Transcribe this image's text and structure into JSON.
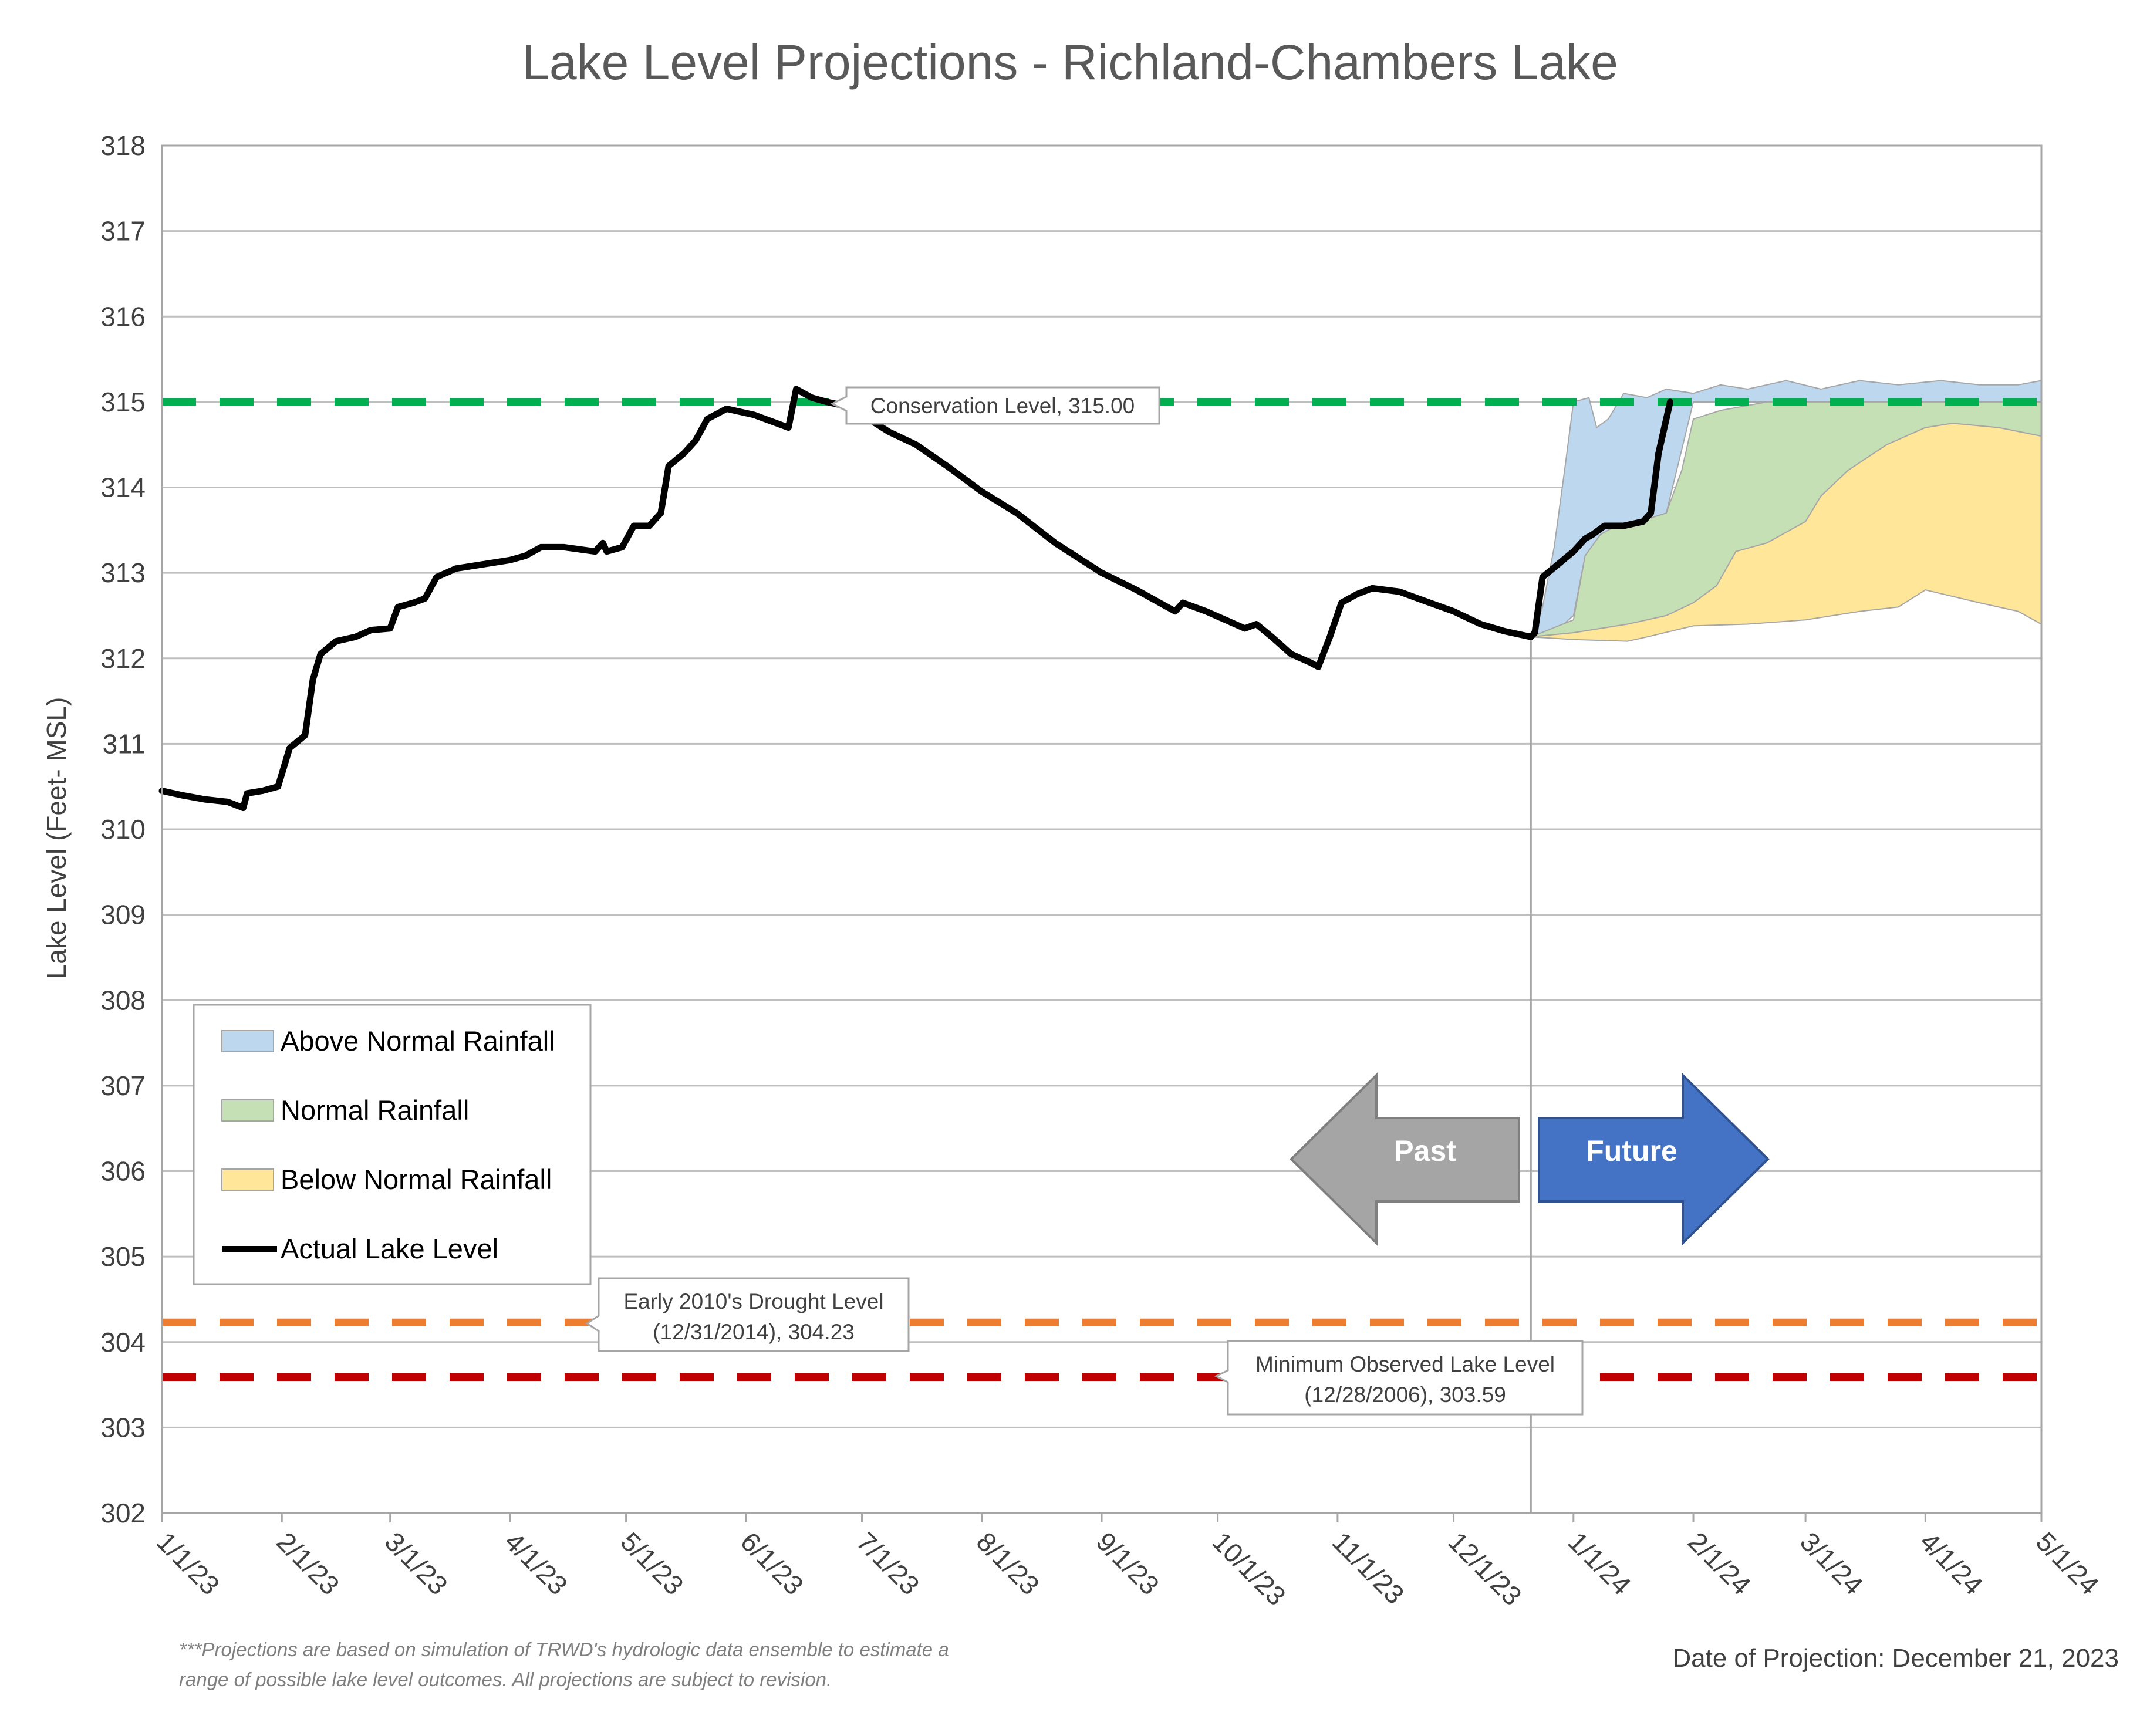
{
  "chart_data": {
    "type": "area",
    "title": "Lake Level Projections - Richland-Chambers Lake",
    "xlabel": "",
    "ylabel": "Lake Level (Feet- MSL)",
    "ylim": [
      302,
      318
    ],
    "yticks": [
      302,
      303,
      304,
      305,
      306,
      307,
      308,
      309,
      310,
      311,
      312,
      313,
      314,
      315,
      316,
      317,
      318
    ],
    "x_start": "2023-01-01",
    "x_end": "2024-05-01",
    "xticks": [
      {
        "label": "1/1/23",
        "date": "2023-01-01"
      },
      {
        "label": "2/1/23",
        "date": "2023-02-01"
      },
      {
        "label": "3/1/23",
        "date": "2023-03-01"
      },
      {
        "label": "4/1/23",
        "date": "2023-04-01"
      },
      {
        "label": "5/1/23",
        "date": "2023-05-01"
      },
      {
        "label": "6/1/23",
        "date": "2023-06-01"
      },
      {
        "label": "7/1/23",
        "date": "2023-07-01"
      },
      {
        "label": "8/1/23",
        "date": "2023-08-01"
      },
      {
        "label": "9/1/23",
        "date": "2023-09-01"
      },
      {
        "label": "10/1/23",
        "date": "2023-10-01"
      },
      {
        "label": "11/1/23",
        "date": "2023-11-01"
      },
      {
        "label": "12/1/23",
        "date": "2023-12-01"
      },
      {
        "label": "1/1/24",
        "date": "2024-01-01"
      },
      {
        "label": "2/1/24",
        "date": "2024-02-01"
      },
      {
        "label": "3/1/24",
        "date": "2024-03-01"
      },
      {
        "label": "4/1/24",
        "date": "2024-04-01"
      },
      {
        "label": "5/1/24",
        "date": "2024-05-01"
      }
    ],
    "grid": true,
    "legend_position": "bottom-left",
    "projection_date": "2023-12-21",
    "reference_lines": [
      {
        "label": "Conservation Level, 315.00",
        "value": 315.0,
        "color": "#00b050"
      },
      {
        "label": "Early 2010's Drought Level (12/31/2014), 304.23",
        "value": 304.23,
        "color": "#ed7d31"
      },
      {
        "label": "Minimum Observed Lake Level (12/28/2006), 303.59",
        "value": 303.59,
        "color": "#c00000"
      }
    ],
    "series": [
      {
        "name": "Above Normal Rainfall",
        "kind": "band",
        "color": "#bdd7ee",
        "upper": [
          [
            "2023-12-21",
            312.25
          ],
          [
            "2023-12-24",
            312.6
          ],
          [
            "2023-12-27",
            313.3
          ],
          [
            "2023-12-30",
            314.3
          ],
          [
            "2024-01-01",
            315.0
          ],
          [
            "2024-01-05",
            315.05
          ],
          [
            "2024-01-07",
            314.7
          ],
          [
            "2024-01-10",
            314.8
          ],
          [
            "2024-01-14",
            315.1
          ],
          [
            "2024-01-20",
            315.05
          ],
          [
            "2024-01-25",
            315.15
          ],
          [
            "2024-02-01",
            315.1
          ],
          [
            "2024-02-08",
            315.2
          ],
          [
            "2024-02-15",
            315.15
          ],
          [
            "2024-02-25",
            315.25
          ],
          [
            "2024-03-05",
            315.15
          ],
          [
            "2024-03-15",
            315.25
          ],
          [
            "2024-03-25",
            315.2
          ],
          [
            "2024-04-05",
            315.25
          ],
          [
            "2024-04-15",
            315.2
          ],
          [
            "2024-04-25",
            315.2
          ],
          [
            "2024-05-01",
            315.25
          ]
        ],
        "lower": [
          [
            "2023-12-21",
            312.25
          ],
          [
            "2023-12-27",
            312.3
          ],
          [
            "2024-01-01",
            312.5
          ],
          [
            "2024-01-04",
            313.2
          ],
          [
            "2024-01-08",
            313.45
          ],
          [
            "2024-01-12",
            313.55
          ],
          [
            "2024-01-18",
            313.6
          ],
          [
            "2024-01-25",
            313.7
          ],
          [
            "2024-02-01",
            315.0
          ],
          [
            "2024-05-01",
            315.0
          ]
        ]
      },
      {
        "name": "Normal Rainfall",
        "kind": "band",
        "color": "#c5e0b4",
        "upper": [
          [
            "2023-12-21",
            312.25
          ],
          [
            "2024-01-01",
            312.45
          ],
          [
            "2024-01-04",
            313.2
          ],
          [
            "2024-01-08",
            313.45
          ],
          [
            "2024-01-12",
            313.55
          ],
          [
            "2024-01-18",
            313.6
          ],
          [
            "2024-01-25",
            313.7
          ],
          [
            "2024-01-29",
            314.2
          ],
          [
            "2024-02-01",
            314.8
          ],
          [
            "2024-02-08",
            314.9
          ],
          [
            "2024-02-20",
            315.0
          ],
          [
            "2024-03-10",
            315.0
          ],
          [
            "2024-04-01",
            315.0
          ],
          [
            "2024-05-01",
            315.0
          ]
        ],
        "lower": [
          [
            "2023-12-21",
            312.25
          ],
          [
            "2024-01-01",
            312.3
          ],
          [
            "2024-01-15",
            312.4
          ],
          [
            "2024-01-25",
            312.5
          ],
          [
            "2024-02-01",
            312.65
          ],
          [
            "2024-02-07",
            312.85
          ],
          [
            "2024-02-12",
            313.25
          ],
          [
            "2024-02-20",
            313.35
          ],
          [
            "2024-03-01",
            313.6
          ],
          [
            "2024-03-05",
            313.9
          ],
          [
            "2024-03-12",
            314.2
          ],
          [
            "2024-03-22",
            314.5
          ],
          [
            "2024-04-01",
            314.7
          ],
          [
            "2024-04-08",
            314.75
          ],
          [
            "2024-04-20",
            314.7
          ],
          [
            "2024-05-01",
            314.6
          ]
        ]
      },
      {
        "name": "Below Normal Rainfall",
        "kind": "band",
        "color": "#ffe699",
        "upper": [
          [
            "2023-12-21",
            312.25
          ],
          [
            "2024-01-01",
            312.3
          ],
          [
            "2024-01-15",
            312.4
          ],
          [
            "2024-01-25",
            312.5
          ],
          [
            "2024-02-01",
            312.65
          ],
          [
            "2024-02-07",
            312.85
          ],
          [
            "2024-02-12",
            313.25
          ],
          [
            "2024-02-20",
            313.35
          ],
          [
            "2024-03-01",
            313.6
          ],
          [
            "2024-03-05",
            313.9
          ],
          [
            "2024-03-12",
            314.2
          ],
          [
            "2024-03-22",
            314.5
          ],
          [
            "2024-04-01",
            314.7
          ],
          [
            "2024-04-08",
            314.75
          ],
          [
            "2024-04-20",
            314.7
          ],
          [
            "2024-05-01",
            314.6
          ]
        ],
        "lower": [
          [
            "2023-12-21",
            312.25
          ],
          [
            "2024-01-01",
            312.22
          ],
          [
            "2024-01-15",
            312.2
          ],
          [
            "2024-01-20",
            312.25
          ],
          [
            "2024-02-01",
            312.38
          ],
          [
            "2024-02-15",
            312.4
          ],
          [
            "2024-03-01",
            312.45
          ],
          [
            "2024-03-15",
            312.55
          ],
          [
            "2024-03-25",
            312.6
          ],
          [
            "2024-04-01",
            312.8
          ],
          [
            "2024-04-15",
            312.65
          ],
          [
            "2024-04-25",
            312.55
          ],
          [
            "2024-05-01",
            312.4
          ]
        ]
      },
      {
        "name": "Actual Lake Level",
        "kind": "line",
        "color": "#000000",
        "points": [
          [
            "2023-01-01",
            310.45
          ],
          [
            "2023-01-06",
            310.4
          ],
          [
            "2023-01-12",
            310.35
          ],
          [
            "2023-01-18",
            310.32
          ],
          [
            "2023-01-22",
            310.25
          ],
          [
            "2023-01-23",
            310.42
          ],
          [
            "2023-01-27",
            310.45
          ],
          [
            "2023-01-31",
            310.5
          ],
          [
            "2023-02-03",
            310.95
          ],
          [
            "2023-02-07",
            311.1
          ],
          [
            "2023-02-09",
            311.75
          ],
          [
            "2023-02-11",
            312.05
          ],
          [
            "2023-02-15",
            312.2
          ],
          [
            "2023-02-20",
            312.25
          ],
          [
            "2023-02-24",
            312.33
          ],
          [
            "2023-03-01",
            312.35
          ],
          [
            "2023-03-03",
            312.6
          ],
          [
            "2023-03-07",
            312.65
          ],
          [
            "2023-03-10",
            312.7
          ],
          [
            "2023-03-13",
            312.95
          ],
          [
            "2023-03-18",
            313.05
          ],
          [
            "2023-03-25",
            313.1
          ],
          [
            "2023-04-01",
            313.15
          ],
          [
            "2023-04-05",
            313.2
          ],
          [
            "2023-04-09",
            313.3
          ],
          [
            "2023-04-15",
            313.3
          ],
          [
            "2023-04-23",
            313.25
          ],
          [
            "2023-04-25",
            313.35
          ],
          [
            "2023-04-26",
            313.25
          ],
          [
            "2023-04-30",
            313.3
          ],
          [
            "2023-05-03",
            313.55
          ],
          [
            "2023-05-07",
            313.55
          ],
          [
            "2023-05-10",
            313.7
          ],
          [
            "2023-05-12",
            314.25
          ],
          [
            "2023-05-16",
            314.4
          ],
          [
            "2023-05-19",
            314.55
          ],
          [
            "2023-05-22",
            314.8
          ],
          [
            "2023-05-27",
            314.92
          ],
          [
            "2023-06-03",
            314.85
          ],
          [
            "2023-06-09",
            314.75
          ],
          [
            "2023-06-12",
            314.7
          ],
          [
            "2023-06-14",
            315.15
          ],
          [
            "2023-06-18",
            315.05
          ],
          [
            "2023-06-22",
            315.0
          ],
          [
            "2023-06-27",
            314.95
          ],
          [
            "2023-07-01",
            314.85
          ],
          [
            "2023-07-08",
            314.65
          ],
          [
            "2023-07-15",
            314.5
          ],
          [
            "2023-07-23",
            314.25
          ],
          [
            "2023-08-01",
            313.95
          ],
          [
            "2023-08-10",
            313.7
          ],
          [
            "2023-08-20",
            313.35
          ],
          [
            "2023-09-01",
            313.0
          ],
          [
            "2023-09-10",
            312.8
          ],
          [
            "2023-09-18",
            312.6
          ],
          [
            "2023-09-20",
            312.55
          ],
          [
            "2023-09-22",
            312.65
          ],
          [
            "2023-09-28",
            312.55
          ],
          [
            "2023-10-03",
            312.45
          ],
          [
            "2023-10-08",
            312.35
          ],
          [
            "2023-10-11",
            312.4
          ],
          [
            "2023-10-15",
            312.25
          ],
          [
            "2023-10-20",
            312.05
          ],
          [
            "2023-10-25",
            311.95
          ],
          [
            "2023-10-27",
            311.9
          ],
          [
            "2023-10-30",
            312.25
          ],
          [
            "2023-11-02",
            312.65
          ],
          [
            "2023-11-06",
            312.75
          ],
          [
            "2023-11-10",
            312.82
          ],
          [
            "2023-11-17",
            312.78
          ],
          [
            "2023-11-23",
            312.68
          ],
          [
            "2023-12-01",
            312.55
          ],
          [
            "2023-12-08",
            312.4
          ],
          [
            "2023-12-14",
            312.32
          ],
          [
            "2023-12-21",
            312.25
          ],
          [
            "2023-12-22",
            312.3
          ],
          [
            "2023-12-24",
            312.95
          ],
          [
            "2023-12-28",
            313.1
          ],
          [
            "2024-01-01",
            313.25
          ],
          [
            "2024-01-04",
            313.4
          ],
          [
            "2024-01-06",
            313.45
          ],
          [
            "2024-01-09",
            313.55
          ],
          [
            "2024-01-14",
            313.55
          ],
          [
            "2024-01-19",
            313.6
          ],
          [
            "2024-01-21",
            313.7
          ],
          [
            "2024-01-23",
            314.4
          ],
          [
            "2024-01-26",
            315.0
          ]
        ]
      }
    ]
  },
  "annotations": {
    "arrow_past": "Past",
    "arrow_future": "Future",
    "footnote_line1": "***Projections are based on simulation of TRWD's hydrologic data ensemble to estimate a",
    "footnote_line2": "range of possible lake level outcomes.  All projections are subject to revision.",
    "date_of_projection": "Date of Projection: December 21, 2023"
  },
  "colors": {
    "grid": "#bfbfbf",
    "plot_border": "#a6a6a6",
    "past_arrow": "#a5a5a5",
    "future_arrow": "#4472c4"
  }
}
